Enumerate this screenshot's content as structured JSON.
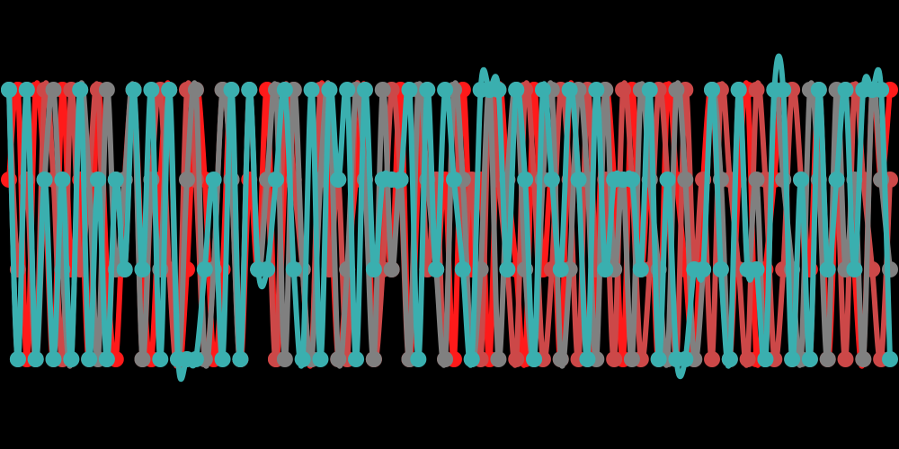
{
  "chart_data": {
    "type": "line",
    "title": "",
    "xlabel": "",
    "ylabel": "",
    "grid": false,
    "legend": "none",
    "xlim": [
      0,
      99
    ],
    "ylim": [
      0,
      3
    ],
    "curve": "smooth",
    "background": "#000000",
    "series": [
      {
        "color": "#ff1a1a",
        "values": [
          2,
          3,
          0,
          3,
          2,
          0,
          3,
          1,
          2,
          0,
          3,
          1,
          0,
          2,
          3,
          1,
          0,
          2,
          3,
          0,
          1,
          3,
          2,
          0,
          1,
          3,
          0,
          2,
          1,
          3,
          0,
          2,
          3,
          1,
          0,
          3,
          2,
          0,
          1,
          2,
          3,
          0,
          2,
          1,
          3,
          0,
          2,
          3,
          1,
          2,
          0,
          3,
          1,
          2,
          0,
          3,
          2,
          1,
          0,
          3,
          1,
          2,
          0,
          3,
          2,
          0,
          1,
          3,
          2,
          0,
          3,
          1,
          2,
          0,
          3,
          2,
          1,
          0,
          2,
          3,
          1,
          0,
          2,
          3,
          0,
          1,
          2,
          3,
          0,
          2,
          1,
          3,
          0,
          2,
          3,
          1,
          0,
          3,
          2,
          3
        ]
      },
      {
        "color": "#cc4848",
        "values": [
          3,
          1,
          2,
          0,
          3,
          2,
          0,
          3,
          1,
          2,
          3,
          0,
          2,
          1,
          3,
          0,
          2,
          3,
          1,
          0,
          3,
          2,
          0,
          1,
          3,
          2,
          0,
          3,
          1,
          2,
          0,
          3,
          2,
          1,
          0,
          3,
          1,
          2,
          0,
          3,
          2,
          0,
          1,
          3,
          2,
          0,
          3,
          1,
          2,
          0,
          3,
          1,
          2,
          0,
          3,
          2,
          1,
          0,
          3,
          2,
          0,
          1,
          3,
          2,
          0,
          3,
          1,
          2,
          0,
          3,
          2,
          0,
          1,
          3,
          2,
          0,
          3,
          1,
          2,
          0,
          3,
          2,
          1,
          0,
          3,
          2,
          0,
          1,
          3,
          2,
          0,
          3,
          1,
          2,
          0,
          3,
          2,
          1,
          0,
          2
        ]
      },
      {
        "color": "#808080",
        "values": [
          3,
          0,
          3,
          0,
          2,
          3,
          1,
          0,
          3,
          2,
          0,
          3,
          1,
          2,
          3,
          0,
          2,
          1,
          3,
          0,
          2,
          3,
          0,
          1,
          3,
          2,
          0,
          3,
          1,
          2,
          3,
          0,
          3,
          1,
          0,
          2,
          3,
          0,
          1,
          3,
          2,
          0,
          3,
          1,
          2,
          0,
          3,
          2,
          1,
          0,
          3,
          2,
          0,
          1,
          3,
          0,
          2,
          3,
          1,
          0,
          2,
          3,
          0,
          1,
          3,
          2,
          0,
          3,
          1,
          2,
          0,
          3,
          2,
          1,
          0,
          3,
          2,
          0,
          1,
          3,
          2,
          0,
          3,
          1,
          2,
          0,
          3,
          2,
          1,
          0,
          3,
          2,
          0,
          3,
          1,
          2,
          0,
          3,
          2,
          1
        ]
      },
      {
        "color": "#3aafaf",
        "values": [
          3,
          0,
          3,
          0,
          2,
          0,
          2,
          0,
          3,
          0,
          2,
          0,
          2,
          1,
          3,
          1,
          3,
          0,
          3,
          0,
          0,
          0,
          1,
          2,
          0,
          3,
          0,
          3,
          1,
          1,
          2,
          3,
          1,
          0,
          3,
          0,
          3,
          2,
          3,
          0,
          3,
          1,
          2,
          2,
          2,
          3,
          0,
          3,
          1,
          3,
          2,
          1,
          0,
          3,
          3,
          3,
          1,
          3,
          2,
          0,
          3,
          2,
          1,
          3,
          2,
          0,
          3,
          1,
          2,
          2,
          2,
          1,
          3,
          0,
          2,
          0,
          0,
          1,
          1,
          3,
          1,
          0,
          3,
          1,
          1,
          0,
          3,
          3,
          0,
          2,
          0,
          3,
          1,
          2,
          3,
          1,
          3,
          3,
          3,
          0
        ]
      }
    ]
  }
}
